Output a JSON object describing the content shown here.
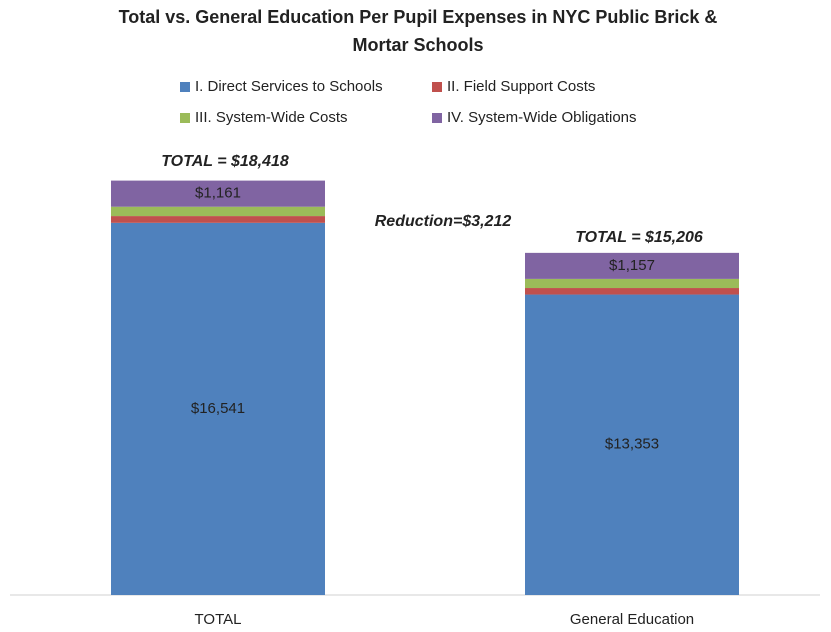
{
  "chart_data": {
    "type": "stacked_bar",
    "title": [
      "Total vs. General Education Per Pupil Expenses in NYC Public Brick &",
      "Mortar Schools"
    ],
    "categories": [
      "TOTAL",
      "General Education"
    ],
    "series": [
      {
        "name": "I. Direct Services to Schools",
        "color": "#4f81bd",
        "values": [
          16541,
          13353
        ],
        "value_labels": [
          "$16,541",
          "$13,353"
        ]
      },
      {
        "name": "II. Field Support Costs",
        "color": "#c0504d",
        "values": [
          300,
          290
        ],
        "value_labels": [
          null,
          null
        ]
      },
      {
        "name": "III. System-Wide Costs",
        "color": "#9bbb59",
        "values": [
          416,
          406
        ],
        "value_labels": [
          null,
          null
        ]
      },
      {
        "name": "IV. System-Wide Obligations",
        "color": "#8064a2",
        "values": [
          1161,
          1157
        ],
        "value_labels": [
          "$1,161",
          "$1,157"
        ]
      }
    ],
    "annotations": [
      "TOTAL = $18,418",
      "Reduction=$3,212",
      "TOTAL = $15,206"
    ],
    "ylim": [
      0,
      20000
    ],
    "legend": "top"
  }
}
